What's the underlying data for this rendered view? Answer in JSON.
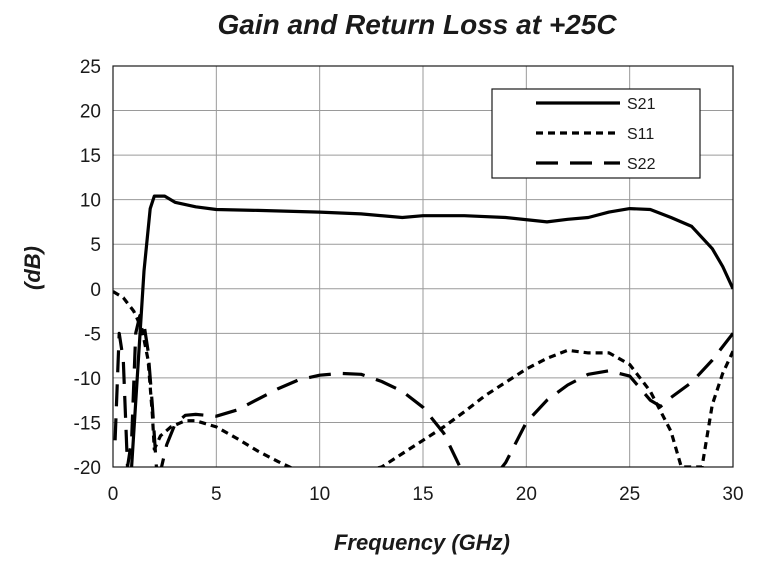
{
  "chart_data": {
    "type": "line",
    "title": "Gain and Return Loss at +25C",
    "xlabel": "Frequency (GHz)",
    "ylabel": "(dB)",
    "xlim": [
      0,
      30
    ],
    "ylim": [
      -20,
      25
    ],
    "x_ticks": [
      "0",
      "5",
      "10",
      "15",
      "20",
      "25",
      "30"
    ],
    "y_ticks": [
      "25",
      "20",
      "15",
      "10",
      "5",
      "0",
      "-5",
      "-10",
      "-15",
      "-20"
    ],
    "grid": true,
    "legend_position": "top-right",
    "series": [
      {
        "name": "S21",
        "style": "solid",
        "points": [
          [
            0.9,
            -20
          ],
          [
            1.2,
            -9
          ],
          [
            1.5,
            2
          ],
          [
            1.8,
            9
          ],
          [
            2.0,
            10.4
          ],
          [
            2.5,
            10.4
          ],
          [
            3,
            9.7
          ],
          [
            4,
            9.2
          ],
          [
            5,
            8.9
          ],
          [
            7,
            8.8
          ],
          [
            10,
            8.6
          ],
          [
            12,
            8.4
          ],
          [
            14,
            8.0
          ],
          [
            15,
            8.2
          ],
          [
            17,
            8.2
          ],
          [
            19,
            8.0
          ],
          [
            21,
            7.5
          ],
          [
            22,
            7.8
          ],
          [
            23,
            8.0
          ],
          [
            24,
            8.6
          ],
          [
            25,
            9.0
          ],
          [
            26,
            8.9
          ],
          [
            27,
            8.0
          ],
          [
            28,
            7.0
          ],
          [
            29,
            4.5
          ],
          [
            29.5,
            2.5
          ],
          [
            30,
            0
          ]
        ]
      },
      {
        "name": "S11",
        "style": "short-dash",
        "points": [
          [
            0,
            -0.3
          ],
          [
            0.5,
            -1
          ],
          [
            1,
            -2.5
          ],
          [
            1.4,
            -4.5
          ],
          [
            1.7,
            -8
          ],
          [
            1.9,
            -14
          ],
          [
            2.0,
            -18
          ],
          [
            2.3,
            -16.5
          ],
          [
            2.8,
            -15.5
          ],
          [
            3.5,
            -14.8
          ],
          [
            4,
            -14.8
          ],
          [
            5,
            -15.5
          ],
          [
            6,
            -16.8
          ],
          [
            7,
            -18.2
          ],
          [
            8,
            -19.4
          ],
          [
            9,
            -20.5
          ],
          [
            11,
            -21
          ],
          [
            13,
            -20
          ],
          [
            14,
            -18.5
          ],
          [
            15,
            -17
          ],
          [
            16,
            -15.5
          ],
          [
            17,
            -13.8
          ],
          [
            18,
            -12
          ],
          [
            19,
            -10.5
          ],
          [
            20,
            -9
          ],
          [
            21,
            -7.8
          ],
          [
            22,
            -6.9
          ],
          [
            23,
            -7.2
          ],
          [
            24,
            -7.2
          ],
          [
            25,
            -8.5
          ],
          [
            26,
            -11.5
          ],
          [
            27,
            -16
          ],
          [
            27.5,
            -20
          ],
          [
            28.5,
            -20
          ],
          [
            29,
            -13
          ],
          [
            29.5,
            -9.5
          ],
          [
            30,
            -7
          ]
        ]
      },
      {
        "name": "S22",
        "style": "long-dash",
        "points": [
          [
            0.1,
            -17
          ],
          [
            0.3,
            -5
          ],
          [
            0.5,
            -8
          ],
          [
            0.7,
            -20
          ],
          [
            0.9,
            -17
          ],
          [
            1.1,
            -5
          ],
          [
            1.3,
            -3
          ],
          [
            1.5,
            -4
          ],
          [
            1.7,
            -7
          ],
          [
            1.9,
            -13
          ],
          [
            2.1,
            -20
          ],
          [
            2.3,
            -20.5
          ],
          [
            2.6,
            -17.5
          ],
          [
            3,
            -15.2
          ],
          [
            3.5,
            -14.2
          ],
          [
            4,
            -14.1
          ],
          [
            5,
            -14.3
          ],
          [
            6,
            -13.6
          ],
          [
            7,
            -12.4
          ],
          [
            8,
            -11.2
          ],
          [
            9,
            -10.2
          ],
          [
            10,
            -9.7
          ],
          [
            11,
            -9.5
          ],
          [
            12,
            -9.6
          ],
          [
            13,
            -10.4
          ],
          [
            14,
            -11.5
          ],
          [
            15,
            -13.3
          ],
          [
            16,
            -16.2
          ],
          [
            17,
            -21
          ],
          [
            18.5,
            -21
          ],
          [
            19,
            -19.5
          ],
          [
            20,
            -15
          ],
          [
            21,
            -12.5
          ],
          [
            22,
            -10.8
          ],
          [
            23,
            -9.6
          ],
          [
            24,
            -9.2
          ],
          [
            25,
            -9.8
          ],
          [
            26,
            -12.5
          ],
          [
            26.5,
            -13.2
          ],
          [
            27,
            -12.2
          ],
          [
            28,
            -10.5
          ],
          [
            29,
            -8
          ],
          [
            30,
            -5
          ]
        ]
      }
    ]
  }
}
